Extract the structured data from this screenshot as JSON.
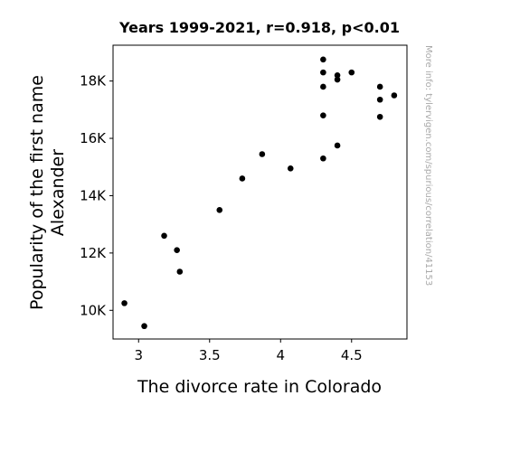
{
  "chart_data": {
    "type": "scatter",
    "title": "Years 1999-2021, r=0.918, p<0.01",
    "xlabel": "The divorce rate in Colorado",
    "ylabel_lines": [
      "Popularity of the first name",
      "Alexander"
    ],
    "xlim": [
      2.82,
      4.89
    ],
    "ylim": [
      9000,
      19250
    ],
    "xticks": [
      3,
      3.5,
      4,
      4.5
    ],
    "xtick_labels": [
      "3",
      "3.5",
      "4",
      "4.5"
    ],
    "yticks": [
      10000,
      12000,
      14000,
      16000,
      18000
    ],
    "ytick_labels": [
      "10K",
      "12K",
      "14K",
      "16K",
      "18K"
    ],
    "grid": false,
    "marker_color": "#000000",
    "points": [
      {
        "x": 2.9,
        "y": 10250
      },
      {
        "x": 3.04,
        "y": 9450
      },
      {
        "x": 3.18,
        "y": 12600
      },
      {
        "x": 3.27,
        "y": 12100
      },
      {
        "x": 3.29,
        "y": 11350
      },
      {
        "x": 3.57,
        "y": 13500
      },
      {
        "x": 3.73,
        "y": 14600
      },
      {
        "x": 3.87,
        "y": 15450
      },
      {
        "x": 4.07,
        "y": 14950
      },
      {
        "x": 4.3,
        "y": 18750
      },
      {
        "x": 4.3,
        "y": 18300
      },
      {
        "x": 4.3,
        "y": 17800
      },
      {
        "x": 4.3,
        "y": 16800
      },
      {
        "x": 4.3,
        "y": 15300
      },
      {
        "x": 4.4,
        "y": 18200
      },
      {
        "x": 4.4,
        "y": 18050
      },
      {
        "x": 4.4,
        "y": 15750
      },
      {
        "x": 4.5,
        "y": 18300
      },
      {
        "x": 4.7,
        "y": 17800
      },
      {
        "x": 4.7,
        "y": 17350
      },
      {
        "x": 4.7,
        "y": 16750
      },
      {
        "x": 4.8,
        "y": 17500
      }
    ]
  },
  "watermark": "More info: tylervigen.com/spurious/correlation/41153"
}
